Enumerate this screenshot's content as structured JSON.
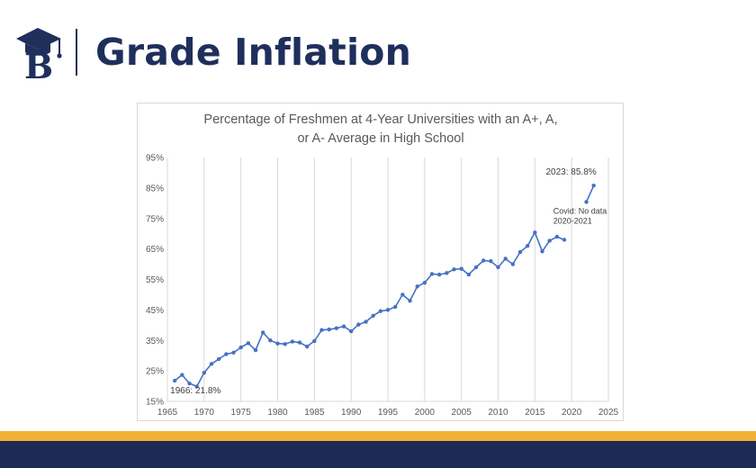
{
  "header": {
    "title": "Grade Inflation",
    "logo_icon": "graduation-cap-b-logo-icon"
  },
  "colors": {
    "navy": "#1f2f5c",
    "gold": "#f2b135",
    "series": "#4472c4"
  },
  "chart_data": {
    "type": "line",
    "title_lines": [
      "Percentage of Freshmen at 4-Year Universities with an A+, A,",
      "or A- Average in High School"
    ],
    "xlabel": "",
    "ylabel": "",
    "xlim": [
      1965,
      2025
    ],
    "ylim": [
      15,
      95
    ],
    "x_ticks": [
      "1965",
      "1970",
      "1975",
      "1980",
      "1985",
      "1990",
      "1995",
      "2000",
      "2005",
      "2010",
      "2015",
      "2020",
      "2025"
    ],
    "y_ticks": [
      "15%",
      "25%",
      "35%",
      "45%",
      "55%",
      "65%",
      "75%",
      "85%",
      "95%"
    ],
    "grid": "vertical",
    "series": [
      {
        "name": "",
        "segments": [
          {
            "x": [
              1966,
              1967,
              1968,
              1969,
              1970,
              1971,
              1972,
              1973,
              1974,
              1975,
              1976,
              1977,
              1978,
              1979,
              1980,
              1981,
              1982,
              1983,
              1984,
              1985,
              1986,
              1987,
              1988,
              1989,
              1990,
              1991,
              1992,
              1993,
              1994,
              1995,
              1996,
              1997,
              1998,
              1999,
              2000,
              2001,
              2002,
              2003,
              2004,
              2005,
              2006,
              2007,
              2008,
              2009,
              2010,
              2011,
              2012,
              2013,
              2014,
              2015,
              2016,
              2017,
              2018,
              2019
            ],
            "y": [
              21.8,
              23.7,
              20.9,
              19.9,
              24.4,
              27.3,
              28.9,
              30.5,
              31.0,
              32.7,
              34.1,
              31.8,
              37.6,
              35.0,
              34.0,
              33.8,
              34.6,
              34.3,
              33.0,
              34.8,
              38.4,
              38.6,
              39.0,
              39.6,
              38.0,
              40.2,
              41.1,
              43.1,
              44.6,
              45.0,
              46.0,
              50.0,
              48.0,
              52.7,
              53.9,
              56.8,
              56.6,
              57.1,
              58.3,
              58.5,
              56.6,
              59.0,
              61.2,
              61.0,
              59.0,
              61.8,
              60.0,
              64.0,
              66.0,
              70.4,
              64.2,
              67.7,
              69.0,
              68.0
            ]
          },
          {
            "x": [
              2022,
              2023
            ],
            "y": [
              80.4,
              85.8
            ]
          }
        ]
      }
    ],
    "annotations": [
      {
        "id": "start",
        "text": "1966: 21.8%"
      },
      {
        "id": "end",
        "text": "2023: 85.8%"
      },
      {
        "id": "gap_line1",
        "text": "Covid: No data"
      },
      {
        "id": "gap_line2",
        "text": "2020-2021"
      }
    ]
  }
}
